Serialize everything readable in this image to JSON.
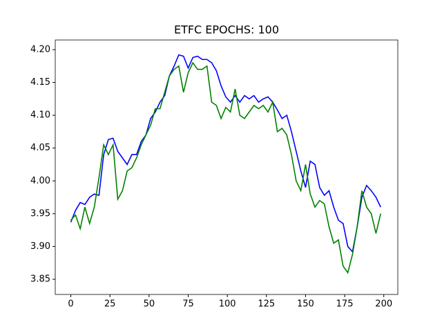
{
  "chart_data": {
    "type": "line",
    "title": "ETFC EPOCHS: 100",
    "x": [
      0,
      3,
      6,
      9,
      12,
      15,
      18,
      21,
      24,
      27,
      30,
      33,
      36,
      39,
      42,
      45,
      48,
      51,
      54,
      57,
      60,
      63,
      66,
      69,
      72,
      75,
      78,
      81,
      84,
      87,
      90,
      93,
      96,
      99,
      102,
      105,
      108,
      111,
      114,
      117,
      120,
      123,
      126,
      129,
      132,
      135,
      138,
      141,
      144,
      147,
      150,
      153,
      156,
      159,
      162,
      165,
      168,
      171,
      174,
      177,
      180,
      183,
      186,
      189,
      192,
      195,
      198
    ],
    "series": [
      {
        "color": "#0000ff",
        "values": [
          3.937,
          3.955,
          3.967,
          3.964,
          3.975,
          3.98,
          3.978,
          4.04,
          4.063,
          4.065,
          4.045,
          4.035,
          4.025,
          4.04,
          4.04,
          4.06,
          4.07,
          4.095,
          4.105,
          4.12,
          4.13,
          4.16,
          4.175,
          4.192,
          4.19,
          4.172,
          4.188,
          4.19,
          4.185,
          4.185,
          4.18,
          4.168,
          4.145,
          4.128,
          4.12,
          4.13,
          4.12,
          4.13,
          4.125,
          4.13,
          4.12,
          4.125,
          4.128,
          4.12,
          4.108,
          4.095,
          4.1,
          4.075,
          4.045,
          4.015,
          3.99,
          4.03,
          4.025,
          3.99,
          3.978,
          3.985,
          3.96,
          3.94,
          3.935,
          3.9,
          3.892,
          3.93,
          3.975,
          3.993,
          3.985,
          3.975,
          3.96
        ]
      },
      {
        "color": "#008000",
        "values": [
          3.94,
          3.948,
          3.927,
          3.96,
          3.935,
          3.96,
          4.005,
          4.055,
          4.04,
          4.055,
          3.972,
          3.985,
          4.015,
          4.02,
          4.035,
          4.055,
          4.07,
          4.085,
          4.11,
          4.11,
          4.135,
          4.16,
          4.17,
          4.175,
          4.135,
          4.165,
          4.18,
          4.17,
          4.17,
          4.175,
          4.12,
          4.115,
          4.095,
          4.112,
          4.105,
          4.14,
          4.1,
          4.095,
          4.105,
          4.115,
          4.11,
          4.115,
          4.105,
          4.12,
          4.075,
          4.08,
          4.07,
          4.04,
          4.0,
          3.985,
          4.025,
          3.98,
          3.96,
          3.97,
          3.965,
          3.93,
          3.905,
          3.91,
          3.87,
          3.86,
          3.888,
          3.93,
          3.985,
          3.96,
          3.95,
          3.92,
          3.95
        ]
      }
    ],
    "xlim": [
      -9.95,
      208.95
    ],
    "ylim": [
      3.8269,
      4.2147
    ],
    "xticks": [
      0,
      25,
      50,
      75,
      100,
      125,
      150,
      175,
      200
    ],
    "yticks": [
      3.85,
      {
        "value": 3.9,
        "label": "3.90"
      },
      3.95,
      {
        "value": 4.0,
        "label": "4.00"
      },
      4.05,
      {
        "value": 4.1,
        "label": "4.10"
      },
      4.15,
      {
        "value": 4.2,
        "label": "4.20"
      }
    ]
  }
}
